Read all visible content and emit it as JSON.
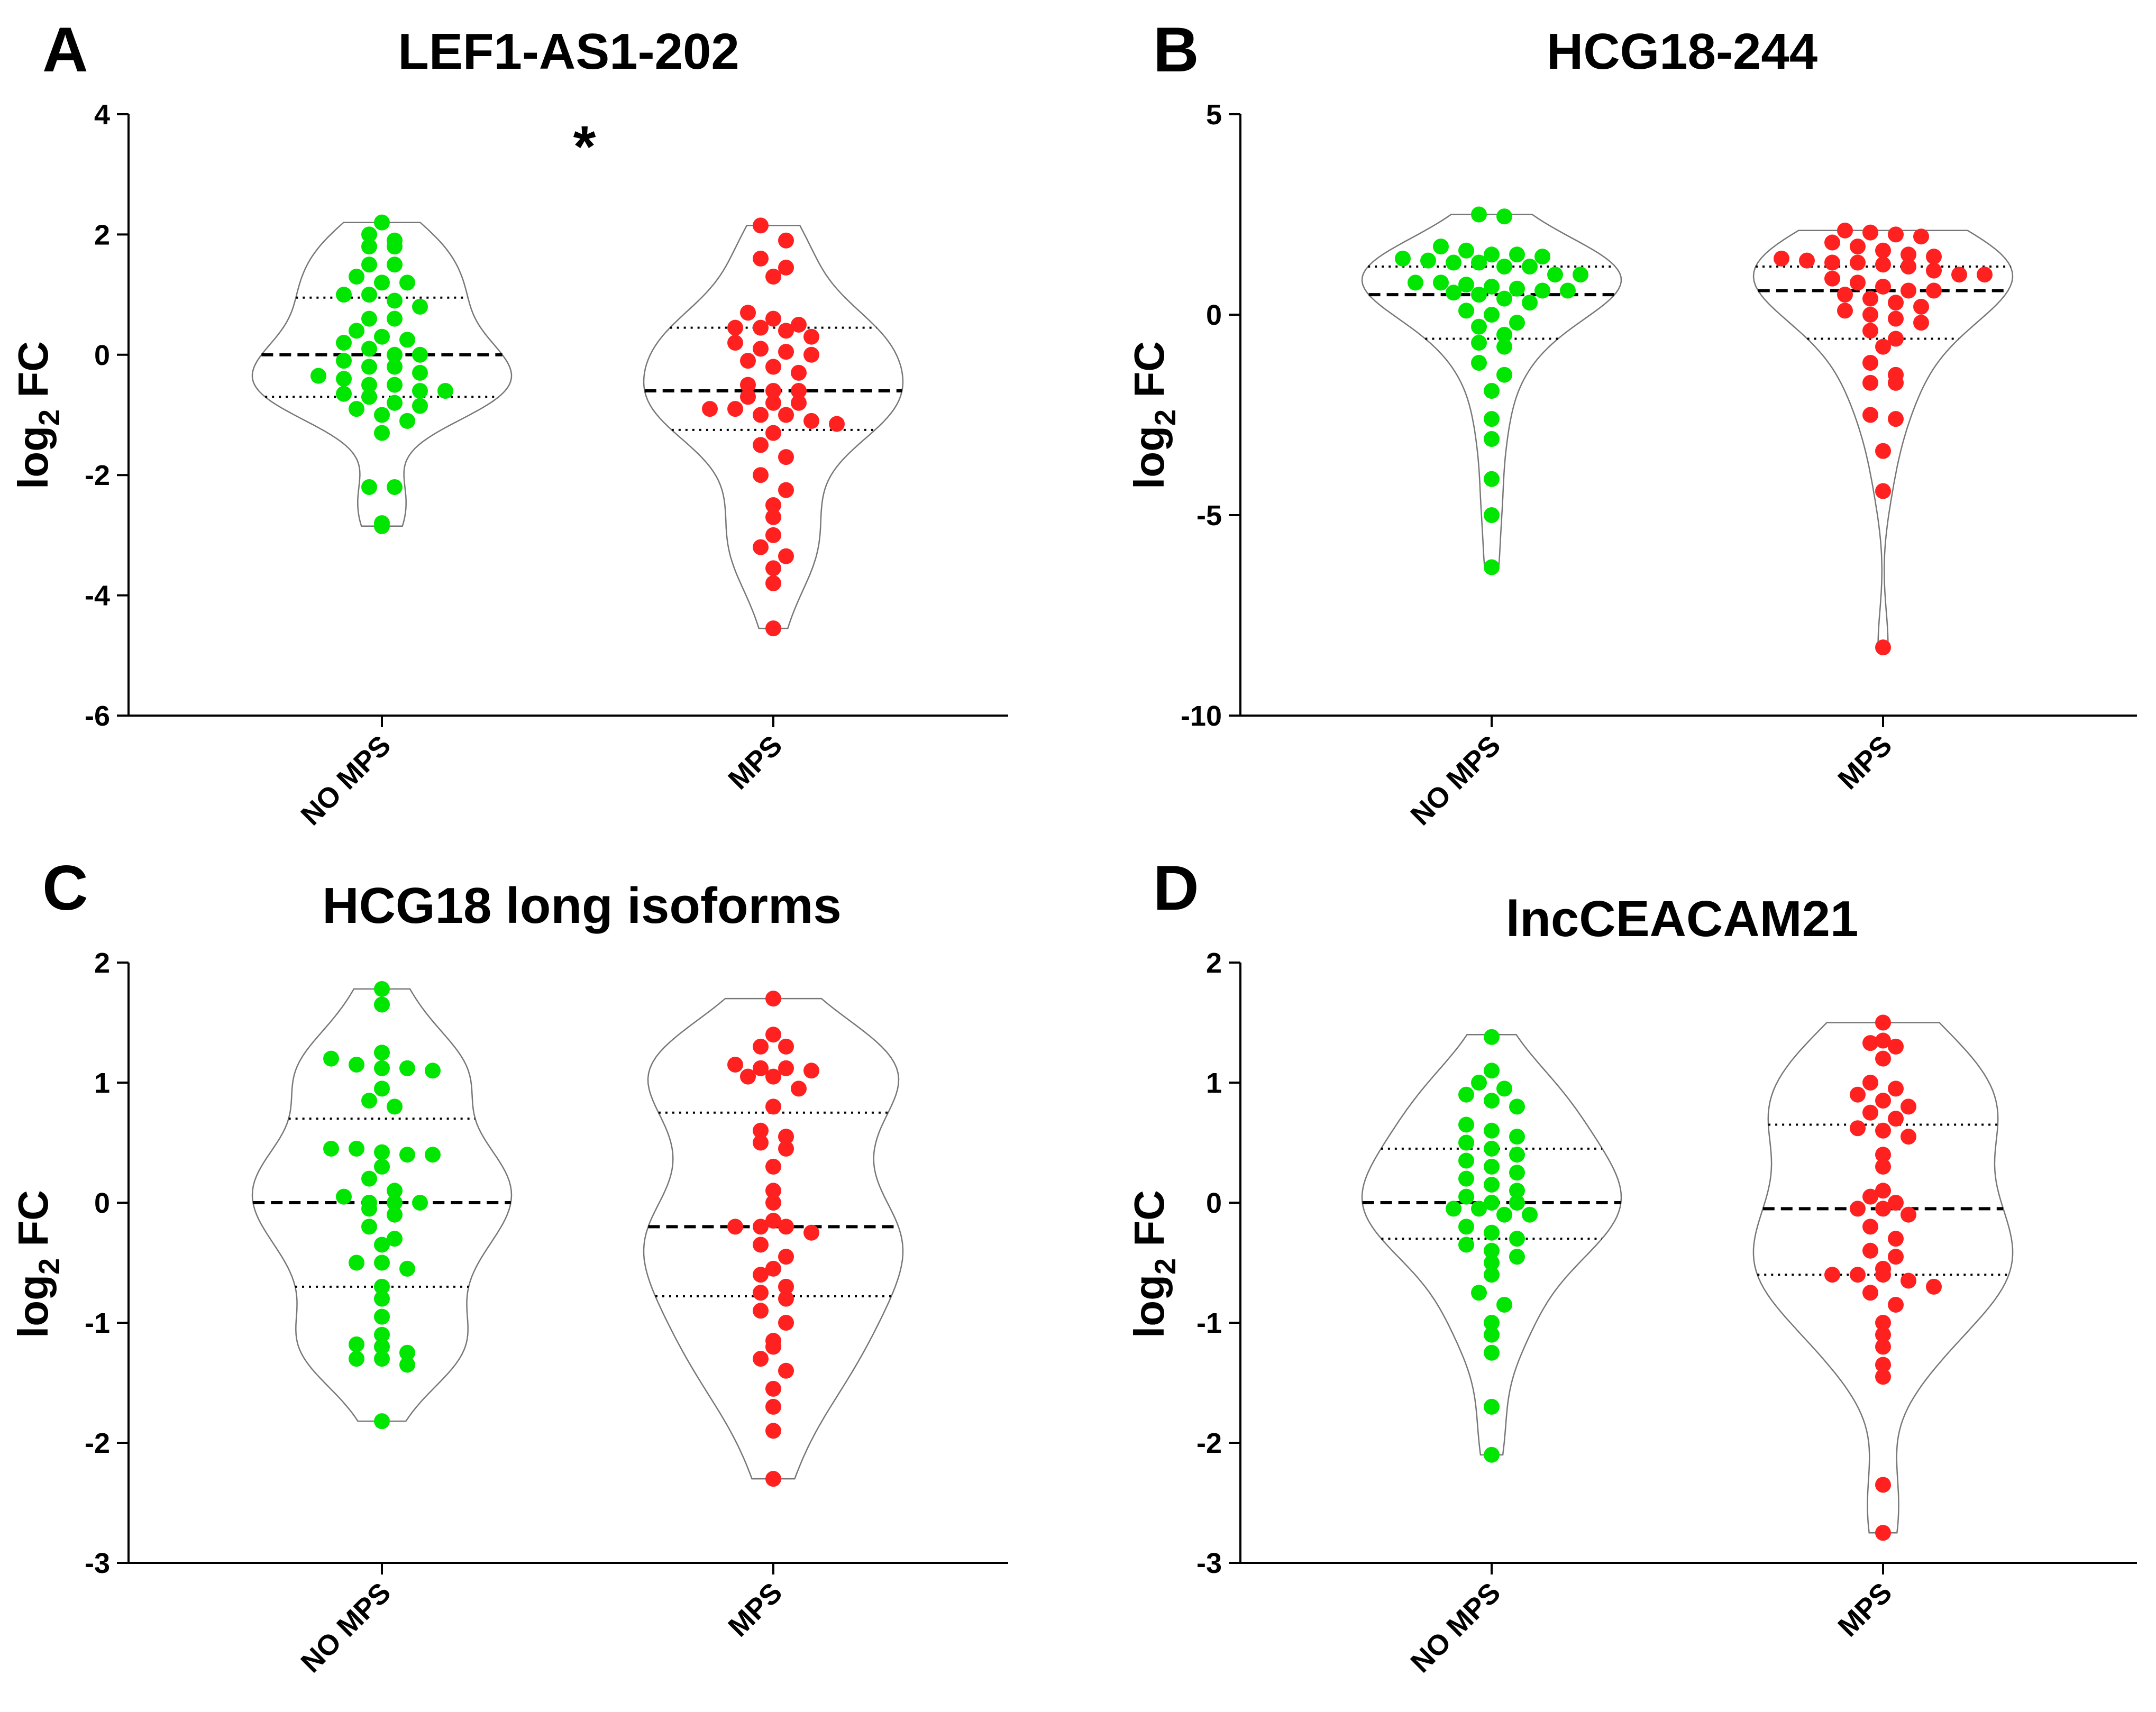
{
  "chart_data": [
    {
      "type": "violin",
      "panel": "A",
      "title": "LEF1-AS1-202",
      "ylabel_main": "log",
      "ylabel_sub": "2",
      "ylabel_tail": " FC",
      "ylim": [
        -6,
        4
      ],
      "yticks": [
        "4",
        "2",
        "0",
        "-2",
        "-4",
        "-6"
      ],
      "significance": "*",
      "groups": [
        {
          "name": "NO MPS",
          "color": "#00e600",
          "median": 0.0,
          "q1": -0.7,
          "q3": 0.95,
          "min": -2.85,
          "max": 2.2,
          "points": [
            2.2,
            2.0,
            1.9,
            1.8,
            1.8,
            1.5,
            1.5,
            1.3,
            1.2,
            1.2,
            1.0,
            1.0,
            0.9,
            0.8,
            0.6,
            0.6,
            0.4,
            0.3,
            0.25,
            0.2,
            0.1,
            0.0,
            0.0,
            -0.1,
            -0.2,
            -0.2,
            -0.3,
            -0.35,
            -0.4,
            -0.5,
            -0.5,
            -0.6,
            -0.6,
            -0.65,
            -0.7,
            -0.8,
            -0.85,
            -0.9,
            -1.0,
            -1.1,
            -1.3,
            -2.2,
            -2.2,
            -2.8,
            -2.85
          ]
        },
        {
          "name": "MPS",
          "color": "#ff2020",
          "median": -0.6,
          "q1": -1.25,
          "q3": 0.45,
          "min": -4.55,
          "max": 2.15,
          "points": [
            2.15,
            1.9,
            1.6,
            1.45,
            1.3,
            0.7,
            0.6,
            0.5,
            0.45,
            0.45,
            0.4,
            0.3,
            0.2,
            0.1,
            0.05,
            0.0,
            -0.1,
            -0.2,
            -0.3,
            -0.5,
            -0.6,
            -0.6,
            -0.7,
            -0.8,
            -0.8,
            -0.9,
            -0.9,
            -1.0,
            -1.0,
            -1.1,
            -1.15,
            -1.3,
            -1.5,
            -1.7,
            -2.0,
            -2.25,
            -2.5,
            -2.7,
            -3.0,
            -3.2,
            -3.35,
            -3.55,
            -3.8,
            -4.55
          ]
        }
      ]
    },
    {
      "type": "violin",
      "panel": "B",
      "title": "HCG18-244",
      "ylabel_main": "log",
      "ylabel_sub": "2",
      "ylabel_tail": " FC",
      "ylim": [
        -10,
        5
      ],
      "yticks": [
        "5",
        "0",
        "-5",
        "-10"
      ],
      "groups": [
        {
          "name": "NO MPS",
          "color": "#00e600",
          "median": 0.5,
          "q1": -0.6,
          "q3": 1.2,
          "min": -6.3,
          "max": 2.5,
          "points": [
            2.5,
            2.45,
            1.7,
            1.6,
            1.5,
            1.5,
            1.45,
            1.4,
            1.35,
            1.3,
            1.3,
            1.2,
            1.2,
            1.0,
            1.0,
            0.8,
            0.8,
            0.75,
            0.7,
            0.65,
            0.6,
            0.6,
            0.55,
            0.5,
            0.4,
            0.3,
            0.1,
            0.0,
            -0.2,
            -0.3,
            -0.5,
            -0.7,
            -0.8,
            -1.2,
            -1.5,
            -1.9,
            -2.6,
            -3.1,
            -4.1,
            -5.0,
            -6.3
          ]
        },
        {
          "name": "MPS",
          "color": "#ff2020",
          "median": 0.6,
          "q1": -0.6,
          "q3": 1.2,
          "min": -8.3,
          "max": 2.1,
          "points": [
            2.1,
            2.05,
            2.0,
            1.95,
            1.8,
            1.7,
            1.6,
            1.5,
            1.45,
            1.4,
            1.35,
            1.3,
            1.3,
            1.25,
            1.2,
            1.1,
            1.0,
            1.0,
            0.9,
            0.8,
            0.7,
            0.6,
            0.6,
            0.5,
            0.4,
            0.3,
            0.2,
            0.1,
            0.0,
            -0.1,
            -0.2,
            -0.4,
            -0.6,
            -0.8,
            -1.2,
            -1.5,
            -1.7,
            -1.7,
            -2.5,
            -2.6,
            -3.4,
            -4.4,
            -8.3
          ]
        }
      ]
    },
    {
      "type": "violin",
      "panel": "C",
      "title": "HCG18 long isoforms",
      "ylabel_main": "log",
      "ylabel_sub": "2",
      "ylabel_tail": " FC",
      "ylim": [
        -3,
        2
      ],
      "yticks": [
        "2",
        "1",
        "0",
        "-1",
        "-2",
        "-3"
      ],
      "groups": [
        {
          "name": "NO MPS",
          "color": "#00e600",
          "median": 0.0,
          "q1": -0.7,
          "q3": 0.7,
          "min": -1.82,
          "max": 1.78,
          "points": [
            1.78,
            1.65,
            1.25,
            1.2,
            1.15,
            1.12,
            1.12,
            1.1,
            0.95,
            0.85,
            0.8,
            0.45,
            0.45,
            0.42,
            0.4,
            0.4,
            0.3,
            0.2,
            0.1,
            0.05,
            0.0,
            0.0,
            0.0,
            -0.05,
            -0.1,
            -0.2,
            -0.3,
            -0.35,
            -0.5,
            -0.5,
            -0.55,
            -0.7,
            -0.8,
            -0.95,
            -1.1,
            -1.18,
            -1.2,
            -1.25,
            -1.3,
            -1.3,
            -1.35,
            -1.82
          ]
        },
        {
          "name": "MPS",
          "color": "#ff2020",
          "median": -0.2,
          "q1": -0.78,
          "q3": 0.75,
          "min": -2.3,
          "max": 1.7,
          "points": [
            1.7,
            1.4,
            1.3,
            1.3,
            1.15,
            1.12,
            1.12,
            1.1,
            1.05,
            1.05,
            0.95,
            0.8,
            0.6,
            0.55,
            0.5,
            0.45,
            0.3,
            0.1,
            0.0,
            -0.15,
            -0.2,
            -0.2,
            -0.2,
            -0.25,
            -0.35,
            -0.45,
            -0.55,
            -0.6,
            -0.7,
            -0.75,
            -0.8,
            -0.9,
            -1.0,
            -1.15,
            -1.2,
            -1.3,
            -1.4,
            -1.55,
            -1.7,
            -1.9,
            -2.3
          ]
        }
      ]
    },
    {
      "type": "violin",
      "panel": "D",
      "title": "lncCEACAM21",
      "ylabel_main": "log",
      "ylabel_sub": "2",
      "ylabel_tail": " FC",
      "ylim": [
        -3,
        2
      ],
      "yticks": [
        "2",
        "1",
        "0",
        "-1",
        "-2",
        "-3"
      ],
      "groups": [
        {
          "name": "NO MPS",
          "color": "#00e600",
          "median": 0.0,
          "q1": -0.3,
          "q3": 0.45,
          "min": -2.1,
          "max": 1.4,
          "points": [
            1.38,
            1.1,
            1.0,
            0.95,
            0.9,
            0.85,
            0.8,
            0.65,
            0.6,
            0.55,
            0.5,
            0.45,
            0.4,
            0.35,
            0.3,
            0.25,
            0.2,
            0.15,
            0.1,
            0.05,
            0.0,
            0.0,
            -0.05,
            -0.05,
            -0.1,
            -0.1,
            -0.2,
            -0.25,
            -0.3,
            -0.35,
            -0.4,
            -0.45,
            -0.5,
            -0.6,
            -0.75,
            -0.85,
            -1.0,
            -1.1,
            -1.25,
            -1.7,
            -2.1
          ]
        },
        {
          "name": "MPS",
          "color": "#ff2020",
          "median": -0.05,
          "q1": -0.6,
          "q3": 0.65,
          "min": -2.75,
          "max": 1.5,
          "points": [
            1.5,
            1.35,
            1.33,
            1.3,
            1.2,
            1.0,
            0.95,
            0.9,
            0.85,
            0.8,
            0.75,
            0.7,
            0.62,
            0.6,
            0.55,
            0.4,
            0.3,
            0.1,
            0.05,
            0.0,
            -0.05,
            -0.05,
            -0.1,
            -0.2,
            -0.3,
            -0.4,
            -0.45,
            -0.55,
            -0.6,
            -0.6,
            -0.6,
            -0.65,
            -0.7,
            -0.75,
            -0.85,
            -1.0,
            -1.1,
            -1.2,
            -1.35,
            -1.45,
            -2.35,
            -2.75
          ]
        }
      ]
    }
  ]
}
